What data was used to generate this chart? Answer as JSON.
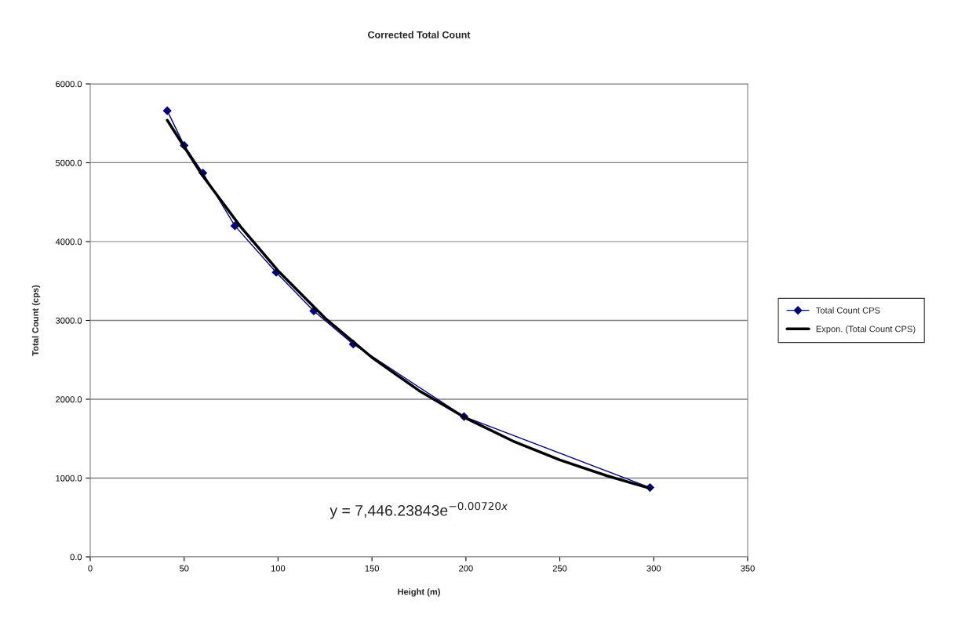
{
  "chart_data": {
    "type": "line",
    "title": "Corrected Total Count",
    "xlabel": "Height (m)",
    "ylabel": "Total Count (cps)",
    "xlim": [
      0,
      350
    ],
    "xticks": [
      0,
      50,
      100,
      150,
      200,
      250,
      300,
      350
    ],
    "ylim": [
      0,
      6000
    ],
    "yticks": [
      {
        "value": 0,
        "label": "0.0"
      },
      {
        "value": 1000,
        "label": "1000.0"
      },
      {
        "value": 2000,
        "label": "2000.0"
      },
      {
        "value": 3000,
        "label": "3000.0"
      },
      {
        "value": 4000,
        "label": "4000.0"
      },
      {
        "value": 5000,
        "label": "5000.0"
      },
      {
        "value": 6000,
        "label": "6000.0"
      }
    ],
    "grid": "y",
    "legend": "right",
    "series": [
      {
        "name": "Total Count CPS",
        "color": "#000080",
        "marker": "diamond",
        "x": [
          41,
          50,
          60,
          77,
          99,
          119,
          140,
          199,
          298
        ],
        "values": [
          5660,
          5220,
          4870,
          4200,
          3610,
          3120,
          2700,
          1780,
          880
        ]
      },
      {
        "name": "Expon. (Total Count CPS)",
        "color": "#000000",
        "marker": "none",
        "x": [
          41,
          60,
          80,
          100,
          125,
          150,
          175,
          200,
          225,
          250,
          275,
          298
        ],
        "values": [
          5540,
          4830,
          4190,
          3630,
          3030,
          2530,
          2110,
          1760,
          1470,
          1230,
          1030,
          870
        ]
      }
    ],
    "annotations": [
      "y = 7,446.23843e$^{−0.00720x}$"
    ]
  }
}
